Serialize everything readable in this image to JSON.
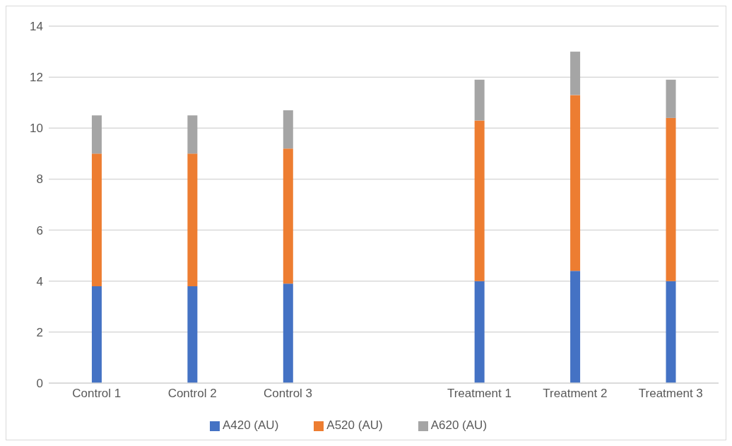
{
  "chart_data": {
    "type": "bar",
    "stacked": true,
    "categories": [
      "Control 1",
      "Control 2",
      "Control 3",
      null,
      "Treatment 1",
      "Treatment 2",
      "Treatment 3"
    ],
    "series": [
      {
        "name": "A420 (AU)",
        "color": "#4472c4",
        "values": [
          3.8,
          3.8,
          3.9,
          null,
          4.0,
          4.4,
          4.0
        ]
      },
      {
        "name": "A520 (AU)",
        "color": "#ed7d31",
        "values": [
          5.2,
          5.2,
          5.3,
          null,
          6.3,
          6.9,
          6.4
        ]
      },
      {
        "name": "A620 (AU)",
        "color": "#a5a5a5",
        "values": [
          1.5,
          1.5,
          1.5,
          null,
          1.6,
          1.7,
          1.5
        ]
      }
    ],
    "ylim": [
      0,
      14
    ],
    "yticks": [
      0,
      2,
      4,
      6,
      8,
      10,
      12,
      14
    ],
    "grid": "y",
    "legend": "bottom"
  }
}
